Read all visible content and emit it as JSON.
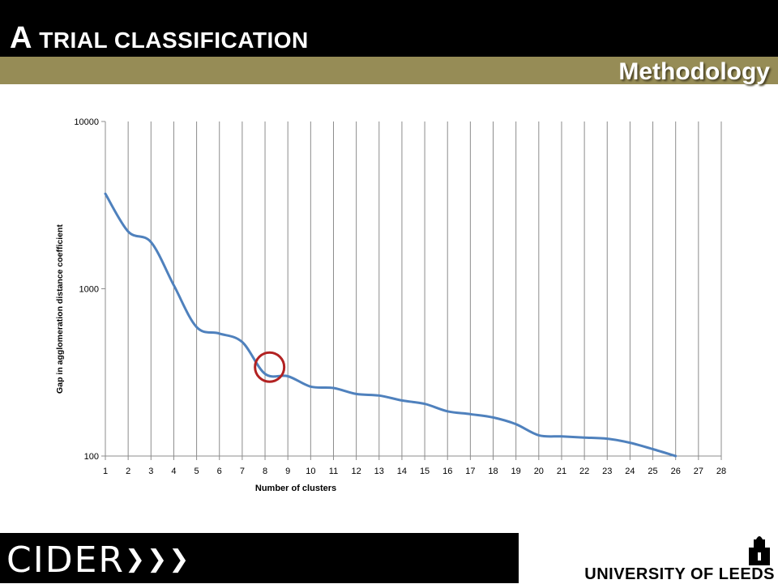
{
  "header": {
    "title_first": "A",
    "title_rest": "TRIAL CLASSIFICATION",
    "subtitle": "Methodology"
  },
  "footer": {
    "left_logo_text": "CIDER",
    "right_logo_text": "UNIVERSITY OF LEEDS"
  },
  "colors": {
    "title_bar": "#000000",
    "subtitle_bar": "#968C56",
    "series_line": "#4F81BD",
    "highlight_circle": "#B22222"
  },
  "chart_data": {
    "type": "line",
    "xlabel": "Number of clusters",
    "ylabel": "Gap in agglomeration distance coefficient",
    "y_scale": "log",
    "ylim": [
      100,
      10000
    ],
    "y_ticks": [
      "100",
      "1000",
      "10000"
    ],
    "x_ticks": [
      "1",
      "2",
      "3",
      "4",
      "5",
      "6",
      "7",
      "8",
      "9",
      "10",
      "11",
      "12",
      "13",
      "14",
      "15",
      "16",
      "17",
      "18",
      "19",
      "20",
      "21",
      "22",
      "23",
      "24",
      "25",
      "26",
      "27",
      "28"
    ],
    "grid": "vertical",
    "x": [
      1,
      2,
      3,
      4,
      5,
      6,
      7,
      8,
      9,
      10,
      11,
      12,
      13,
      14,
      15,
      16,
      17,
      18,
      19,
      20,
      21,
      22,
      23,
      24,
      25,
      26
    ],
    "values": [
      3700,
      2200,
      1900,
      1050,
      590,
      540,
      480,
      310,
      300,
      260,
      255,
      235,
      230,
      215,
      205,
      185,
      178,
      170,
      155,
      133,
      131,
      129,
      127,
      120,
      110,
      100
    ],
    "highlight": {
      "x": 8.2,
      "y": 340,
      "shape": "circle"
    }
  }
}
